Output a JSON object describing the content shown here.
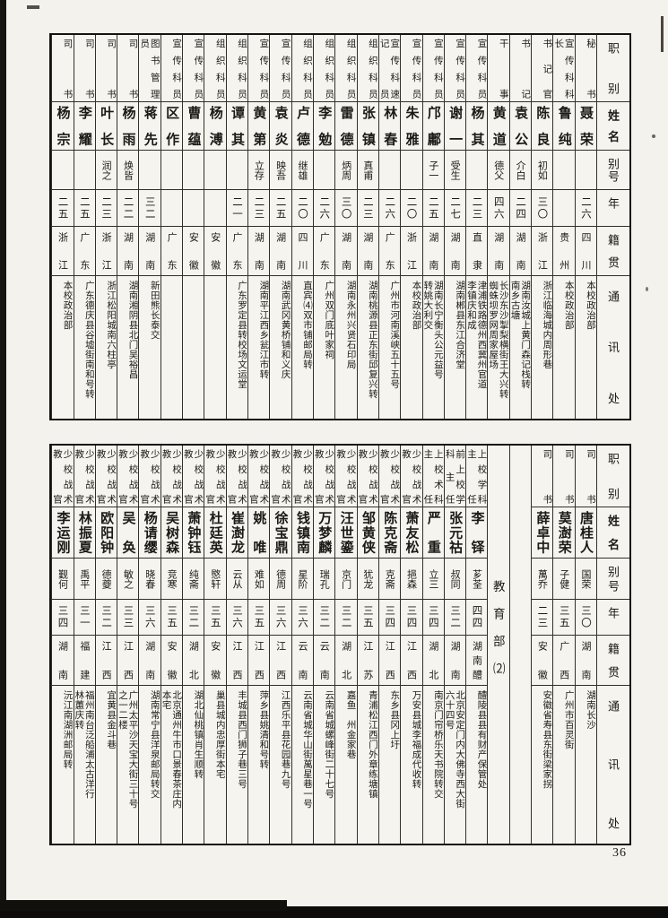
{
  "theme": {
    "paper": "#f4f2ec",
    "ink": "#1c1a17",
    "line": "#33302a"
  },
  "page_number": "36",
  "row_labels": [
    "职别",
    "姓名",
    "别号",
    "年龄",
    "籍贯",
    "通讯处"
  ],
  "table1": {
    "columns": [
      {
        "title": "秘书",
        "name": "聂荣臻",
        "alias": "",
        "age": "二六",
        "origin": "四川",
        "address": "本校政治部"
      },
      {
        "title": "宣传科科\n长",
        "name": "鲁纯仁",
        "alias": "",
        "age": "",
        "origin": "贵州",
        "address": "本校政治部"
      },
      {
        "title": "书记官",
        "name": "陈良",
        "alias": "初如",
        "age": "三〇",
        "origin": "浙江",
        "address": "浙江临海城内周形巷"
      },
      {
        "title": "书记",
        "name": "袁公夏",
        "alias": "介白",
        "age": "二四",
        "origin": "湖南",
        "address": "湖南汝城上黄门森记栈转\n南乡古塘"
      },
      {
        "title": "干事",
        "name": "黄道",
        "alias": "德父",
        "age": "四六",
        "origin": "湖南",
        "address": "长沙东沙掣梨横街王大兴转\n蜘蛛坝罗网周家屋场"
      },
      {
        "title": "宣传科员",
        "name": "杨其纲",
        "alias": "",
        "age": "二三",
        "origin": "直隶",
        "address": "津浦铁路德州西冀州官道\n李镇庆和成"
      },
      {
        "title": "宣传科员",
        "name": "谢一寰",
        "alias": "受生",
        "age": "二七",
        "origin": "湖南",
        "address": "湖南郴县东江合济堂"
      },
      {
        "title": "宣传科员",
        "name": "邝鄘",
        "alias": "子一",
        "age": "二五",
        "origin": "湖南",
        "address": "湖南长宁衡头公元益号\n转姚大利交"
      },
      {
        "title": "宣传科员",
        "name": "朱雅零",
        "alias": "",
        "age": "二〇",
        "origin": "浙江",
        "address": "本校政治部"
      },
      {
        "title": "宣传科速\n记员",
        "name": "林春华",
        "alias": "",
        "age": "二六",
        "origin": "广东",
        "address": "广州市河南溪峡五十五号"
      },
      {
        "title": "组织科员",
        "name": "张镇",
        "alias": "真甫",
        "age": "二三",
        "origin": "湖南",
        "address": "湖南桃源县正东街邱复兴转"
      },
      {
        "title": "组织科员",
        "name": "雷德堂",
        "alias": "炳周",
        "age": "三〇",
        "origin": "湖南",
        "address": "湖南永州兴贤石印局"
      },
      {
        "title": "组织科员",
        "name": "李勉成",
        "alias": "",
        "age": "二六",
        "origin": "广东",
        "address": "广州双门底叶家祠"
      },
      {
        "title": "组织科员",
        "name": "卢德铭",
        "alias": "继雄",
        "age": "二〇",
        "origin": "四川",
        "address": "直宾⑷双市铺邮局转"
      },
      {
        "title": "宣传科员",
        "name": "袁炎烈",
        "alias": "映吾",
        "age": "二五",
        "origin": "湖南",
        "address": "湖南武冈黄桥铺和义庆"
      },
      {
        "title": "宣传科员",
        "name": "黄第洪",
        "alias": "立存",
        "age": "二三",
        "origin": "湖南",
        "address": "湖南平江西乡瓮江市转"
      },
      {
        "title": "组织科员",
        "name": "谭其镜",
        "alias": "",
        "age": "二一",
        "origin": "广东",
        "address": "广东罗定县转校场文运堂"
      },
      {
        "title": "组织科员",
        "name": "杨溥泉",
        "alias": "",
        "age": "",
        "origin": "安徽",
        "address": ""
      },
      {
        "title": "宣传科员",
        "name": "曹蕴真",
        "alias": "",
        "age": "",
        "origin": "安徽",
        "address": ""
      },
      {
        "title": "宣传科员",
        "name": "区作垣",
        "alias": "",
        "age": "",
        "origin": "广东",
        "address": ""
      },
      {
        "title": "图书管理\n员",
        "name": "蒋先泽",
        "alias": "",
        "age": "三二",
        "origin": "湖南",
        "address": "新田熊长泰交"
      },
      {
        "title": "司书",
        "name": "杨雨廷",
        "alias": "焕皆",
        "age": "二二",
        "origin": "湖南",
        "address": "湖南湘阴县北门吴裕昌"
      },
      {
        "title": "司书",
        "name": "叶长德",
        "alias": "润之",
        "age": "二三",
        "origin": "浙江",
        "address": "浙江松阳城南六柱亭"
      },
      {
        "title": "司书",
        "name": "李耀燊",
        "alias": "",
        "age": "二五",
        "origin": "广东",
        "address": "广东德庆县谷墟街南和号转"
      },
      {
        "title": "司书",
        "name": "杨宗励",
        "alias": "",
        "age": "二五",
        "origin": "浙江",
        "address": "本校政治部"
      }
    ]
  },
  "table2": {
    "section_label": "教育部⑵",
    "columns": [
      {
        "title": "司书",
        "name": "唐桂人",
        "alias": "国荣",
        "age": "三〇",
        "origin": "湖南",
        "address": "湖南长沙"
      },
      {
        "title": "司书",
        "name": "莫澍荣",
        "alias": "子健",
        "age": "三五",
        "origin": "广西",
        "address": "广州市百灵街"
      },
      {
        "title": "司书",
        "name": "薛卓中",
        "alias": "萬乔",
        "age": "二三",
        "origin": "安徽",
        "address": "安徽省寿县东街梁家拐"
      },
      {
        "type": "blank"
      },
      {
        "type": "divider",
        "label": "教育部⑵"
      },
      {
        "title": "上校学科\n主任",
        "name": "李铎",
        "alias": "芗荃",
        "age": "四四",
        "origin": "湖南醴陵",
        "address": "醴陵县县有财产保管处"
      },
      {
        "title": "前上校学\n科主任",
        "name": "张元祜",
        "alias": "叔同",
        "age": "三二",
        "origin": "湖南",
        "address": "北京安定门内大佛寺西大街\n六十四号"
      },
      {
        "title": "上校术科\n主任",
        "name": "严重",
        "alias": "立三",
        "age": "三四",
        "origin": "湖北",
        "address": "南京门帘桥乐天书院转交"
      },
      {
        "title": "少校战术\n教官",
        "name": "萧友松",
        "alias": "挹森",
        "age": "三四",
        "origin": "江西",
        "address": "万安县城李福成代收转"
      },
      {
        "title": "少校战术\n教官",
        "name": "陈克斋",
        "alias": "克斋",
        "age": "三四",
        "origin": "江西",
        "address": "东乡县冈上圩"
      },
      {
        "title": "少校战术\n教官",
        "name": "邹黄侠",
        "alias": "犹龙",
        "age": "三五",
        "origin": "江苏",
        "address": "青浦松江西门外章练塘镇"
      },
      {
        "title": "少校战术\n教官",
        "name": "汪世鎏",
        "alias": "京门",
        "age": "三二",
        "origin": "湖北",
        "address": "嘉鱼　州金家巷"
      },
      {
        "title": "少校战术\n教官",
        "name": "万梦麟",
        "alias": "瑞孔",
        "age": "三二",
        "origin": "云南",
        "address": "云南省城螺峰街二十七号"
      },
      {
        "title": "少校战术\n教官",
        "name": "钱镇南",
        "alias": "星阶",
        "age": "三六",
        "origin": "云南",
        "address": "云南省城华山街萬星巷一号"
      },
      {
        "title": "少校战术\n教官",
        "name": "徐宝鼎",
        "alias": "德周",
        "age": "三六",
        "origin": "江西",
        "address": "江西乐平县花园巷九号"
      },
      {
        "title": "少校战术\n教官",
        "name": "姚唯",
        "alias": "难如",
        "age": "三五",
        "origin": "江西",
        "address": "萍乡县姚清和号转"
      },
      {
        "title": "少校战术\n教官",
        "name": "崔澍龙",
        "alias": "云从",
        "age": "三六",
        "origin": "江西",
        "address": "丰城县西门狮子巷三号"
      },
      {
        "title": "少校战术\n教官",
        "name": "杜廷英",
        "alias": "愍轩",
        "age": "三五",
        "origin": "安徽",
        "address": "巢县城内忠厚街本宅"
      },
      {
        "title": "少校战术\n教官",
        "name": "萧钟钰",
        "alias": "纯斋",
        "age": "三二",
        "origin": "湖北",
        "address": "湖北仙桃镇肖生顺转"
      },
      {
        "title": "少校战术\n教官",
        "name": "吴树森",
        "alias": "竞寒",
        "age": "三五",
        "origin": "安徽",
        "address": "北京通州牛市口景春茶庄内\n本宅"
      },
      {
        "title": "少校战术\n教官",
        "name": "杨请缨",
        "alias": "晓春",
        "age": "三六",
        "origin": "湖南",
        "address": "湖南常宁县洋泉邮局转交"
      },
      {
        "title": "少校战术\n教官",
        "name": "吴奂",
        "alias": "敏之",
        "age": "三三",
        "origin": "江西",
        "address": "广州太平沙天宝大街三十号\n之一二楼"
      },
      {
        "title": "少校战术\n教官",
        "name": "欧阳钟",
        "alias": "德夔",
        "age": "三二",
        "origin": "江西",
        "address": "宜黄县金斗巷"
      },
      {
        "title": "少校战术\n教官",
        "name": "林振夏",
        "alias": "禹平",
        "age": "三一",
        "origin": "福建",
        "address": "福州南台泛船浦太古洋行\n林蕙庆转"
      },
      {
        "title": "少校战术\n教官",
        "name": "李运刚",
        "alias": "觐何",
        "age": "三四",
        "origin": "湖南",
        "address": "沅江南湖洲邮局转"
      }
    ]
  }
}
